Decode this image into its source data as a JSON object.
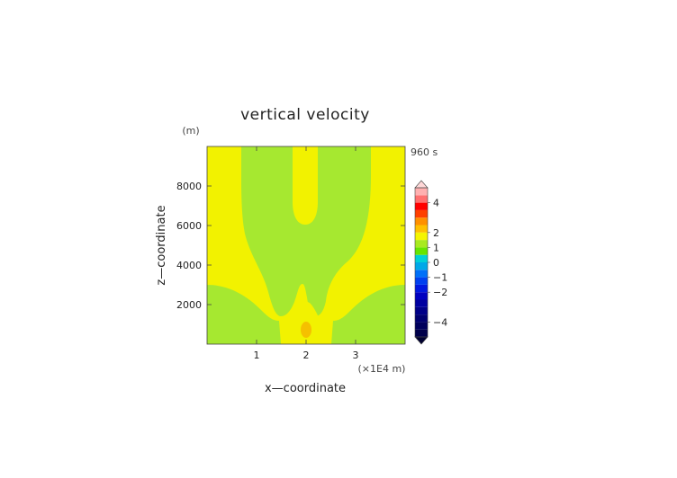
{
  "chart_data": {
    "type": "heatmap",
    "title": "vertical velocity",
    "time_label": "960 s",
    "xlabel": "x—coordinate",
    "ylabel": "z—coordinate",
    "x_unit_label": "(×1E4 m)",
    "y_unit_label": "(m)",
    "xlim": [
      0,
      4
    ],
    "ylim": [
      0,
      10000
    ],
    "x_ticks": [
      1,
      2,
      3
    ],
    "x_tick_labels": [
      "1",
      "2",
      "3"
    ],
    "y_ticks": [
      2000,
      4000,
      6000,
      8000
    ],
    "y_tick_labels": [
      "2000",
      "4000",
      "6000",
      "8000"
    ],
    "grid": false,
    "colorbar": {
      "levels": [
        -5,
        -4.5,
        -4,
        -3.5,
        -3,
        -2.5,
        -2,
        -1.5,
        -1,
        -0.5,
        0,
        0.5,
        1,
        1.5,
        2,
        2.5,
        3,
        3.5,
        4,
        4.5,
        5
      ],
      "colors": [
        "#00004a",
        "#00005c",
        "#000070",
        "#000088",
        "#0000a0",
        "#0000c0",
        "#0018e0",
        "#0040f0",
        "#0070f8",
        "#00a8e8",
        "#00d0d8",
        "#66e600",
        "#a8ea20",
        "#f5f500",
        "#ffc000",
        "#ff9000",
        "#ff4000",
        "#ff0000",
        "#ff7070",
        "#ffb0b0"
      ],
      "tick_values": [
        4,
        2,
        1,
        0,
        -1,
        -2,
        -4
      ],
      "tick_labels": [
        "4",
        "2",
        "1",
        "0",
        "−1",
        "−2",
        "−4"
      ]
    },
    "field_regions": [
      {
        "value_range": [
          0,
          0.5
        ],
        "color": "#a6e830",
        "description": "green weak-downdraft bands"
      },
      {
        "value_range": [
          0.5,
          1
        ],
        "color": "#f2f200",
        "description": "yellow background updraft"
      },
      {
        "value_range": [
          1,
          1.5
        ],
        "color": "#f5c000",
        "description": "orange cell near x=2, z=800"
      }
    ]
  }
}
